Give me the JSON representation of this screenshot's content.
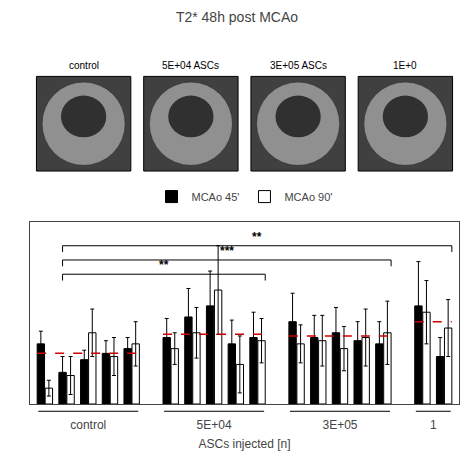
{
  "chart_data": {
    "type": "bar",
    "title": "T2* 48h post MCAo",
    "xlabel": "ASCs injected [n]",
    "annotations": [
      "control",
      "5E+04 ASCs",
      "3E+05 ASCs",
      "1E+0"
    ],
    "groups": [
      {
        "name": "control",
        "n": 5
      },
      {
        "name": "5E+04",
        "n": 5
      },
      {
        "name": "3E+05",
        "n": 5
      },
      {
        "name": "1",
        "n": 2
      }
    ],
    "series": [
      {
        "name": "MCAo 45'",
        "color": "#000000",
        "values": [
          0.38,
          0.2,
          0.28,
          0.32,
          0.35,
          0.42,
          0.55,
          0.62,
          0.38,
          0.42,
          0.52,
          0.42,
          0.45,
          0.4,
          0.38,
          0.62,
          0.3
        ],
        "errors": [
          0.08,
          0.1,
          0.06,
          0.08,
          0.07,
          0.12,
          0.18,
          0.22,
          0.15,
          0.16,
          0.18,
          0.14,
          0.16,
          0.12,
          0.14,
          0.28,
          0.12
        ]
      },
      {
        "name": "MCAo 90'",
        "color": "#ffffff",
        "values": [
          0.1,
          0.18,
          0.45,
          0.3,
          0.38,
          0.35,
          0.45,
          0.72,
          0.25,
          0.4,
          0.38,
          0.4,
          0.35,
          0.42,
          0.45,
          0.58,
          0.48
        ],
        "errors": [
          0.05,
          0.12,
          0.15,
          0.12,
          0.14,
          0.1,
          0.16,
          0.28,
          0.18,
          0.14,
          0.12,
          0.16,
          0.14,
          0.18,
          0.2,
          0.2,
          0.18
        ]
      }
    ],
    "reference_lines": {
      "color": "#cc0000",
      "line_style": "dashed",
      "values": [
        0.32,
        0.44,
        0.43,
        0.52
      ]
    },
    "brackets": [
      {
        "label": "**",
        "from": 1,
        "to_group": 1,
        "y": 0.82,
        "tip": 0.04
      },
      {
        "label": "***",
        "from": 1,
        "to_group": 2,
        "y": 0.91,
        "tip": 0.04
      },
      {
        "label": "**",
        "from": 1,
        "to_group": 3,
        "y": 1.0,
        "tip": 0.04
      }
    ],
    "ylim": [
      0,
      1.15
    ],
    "yticks": [],
    "tick_labels": "x",
    "legend": "top",
    "grid": false
  }
}
